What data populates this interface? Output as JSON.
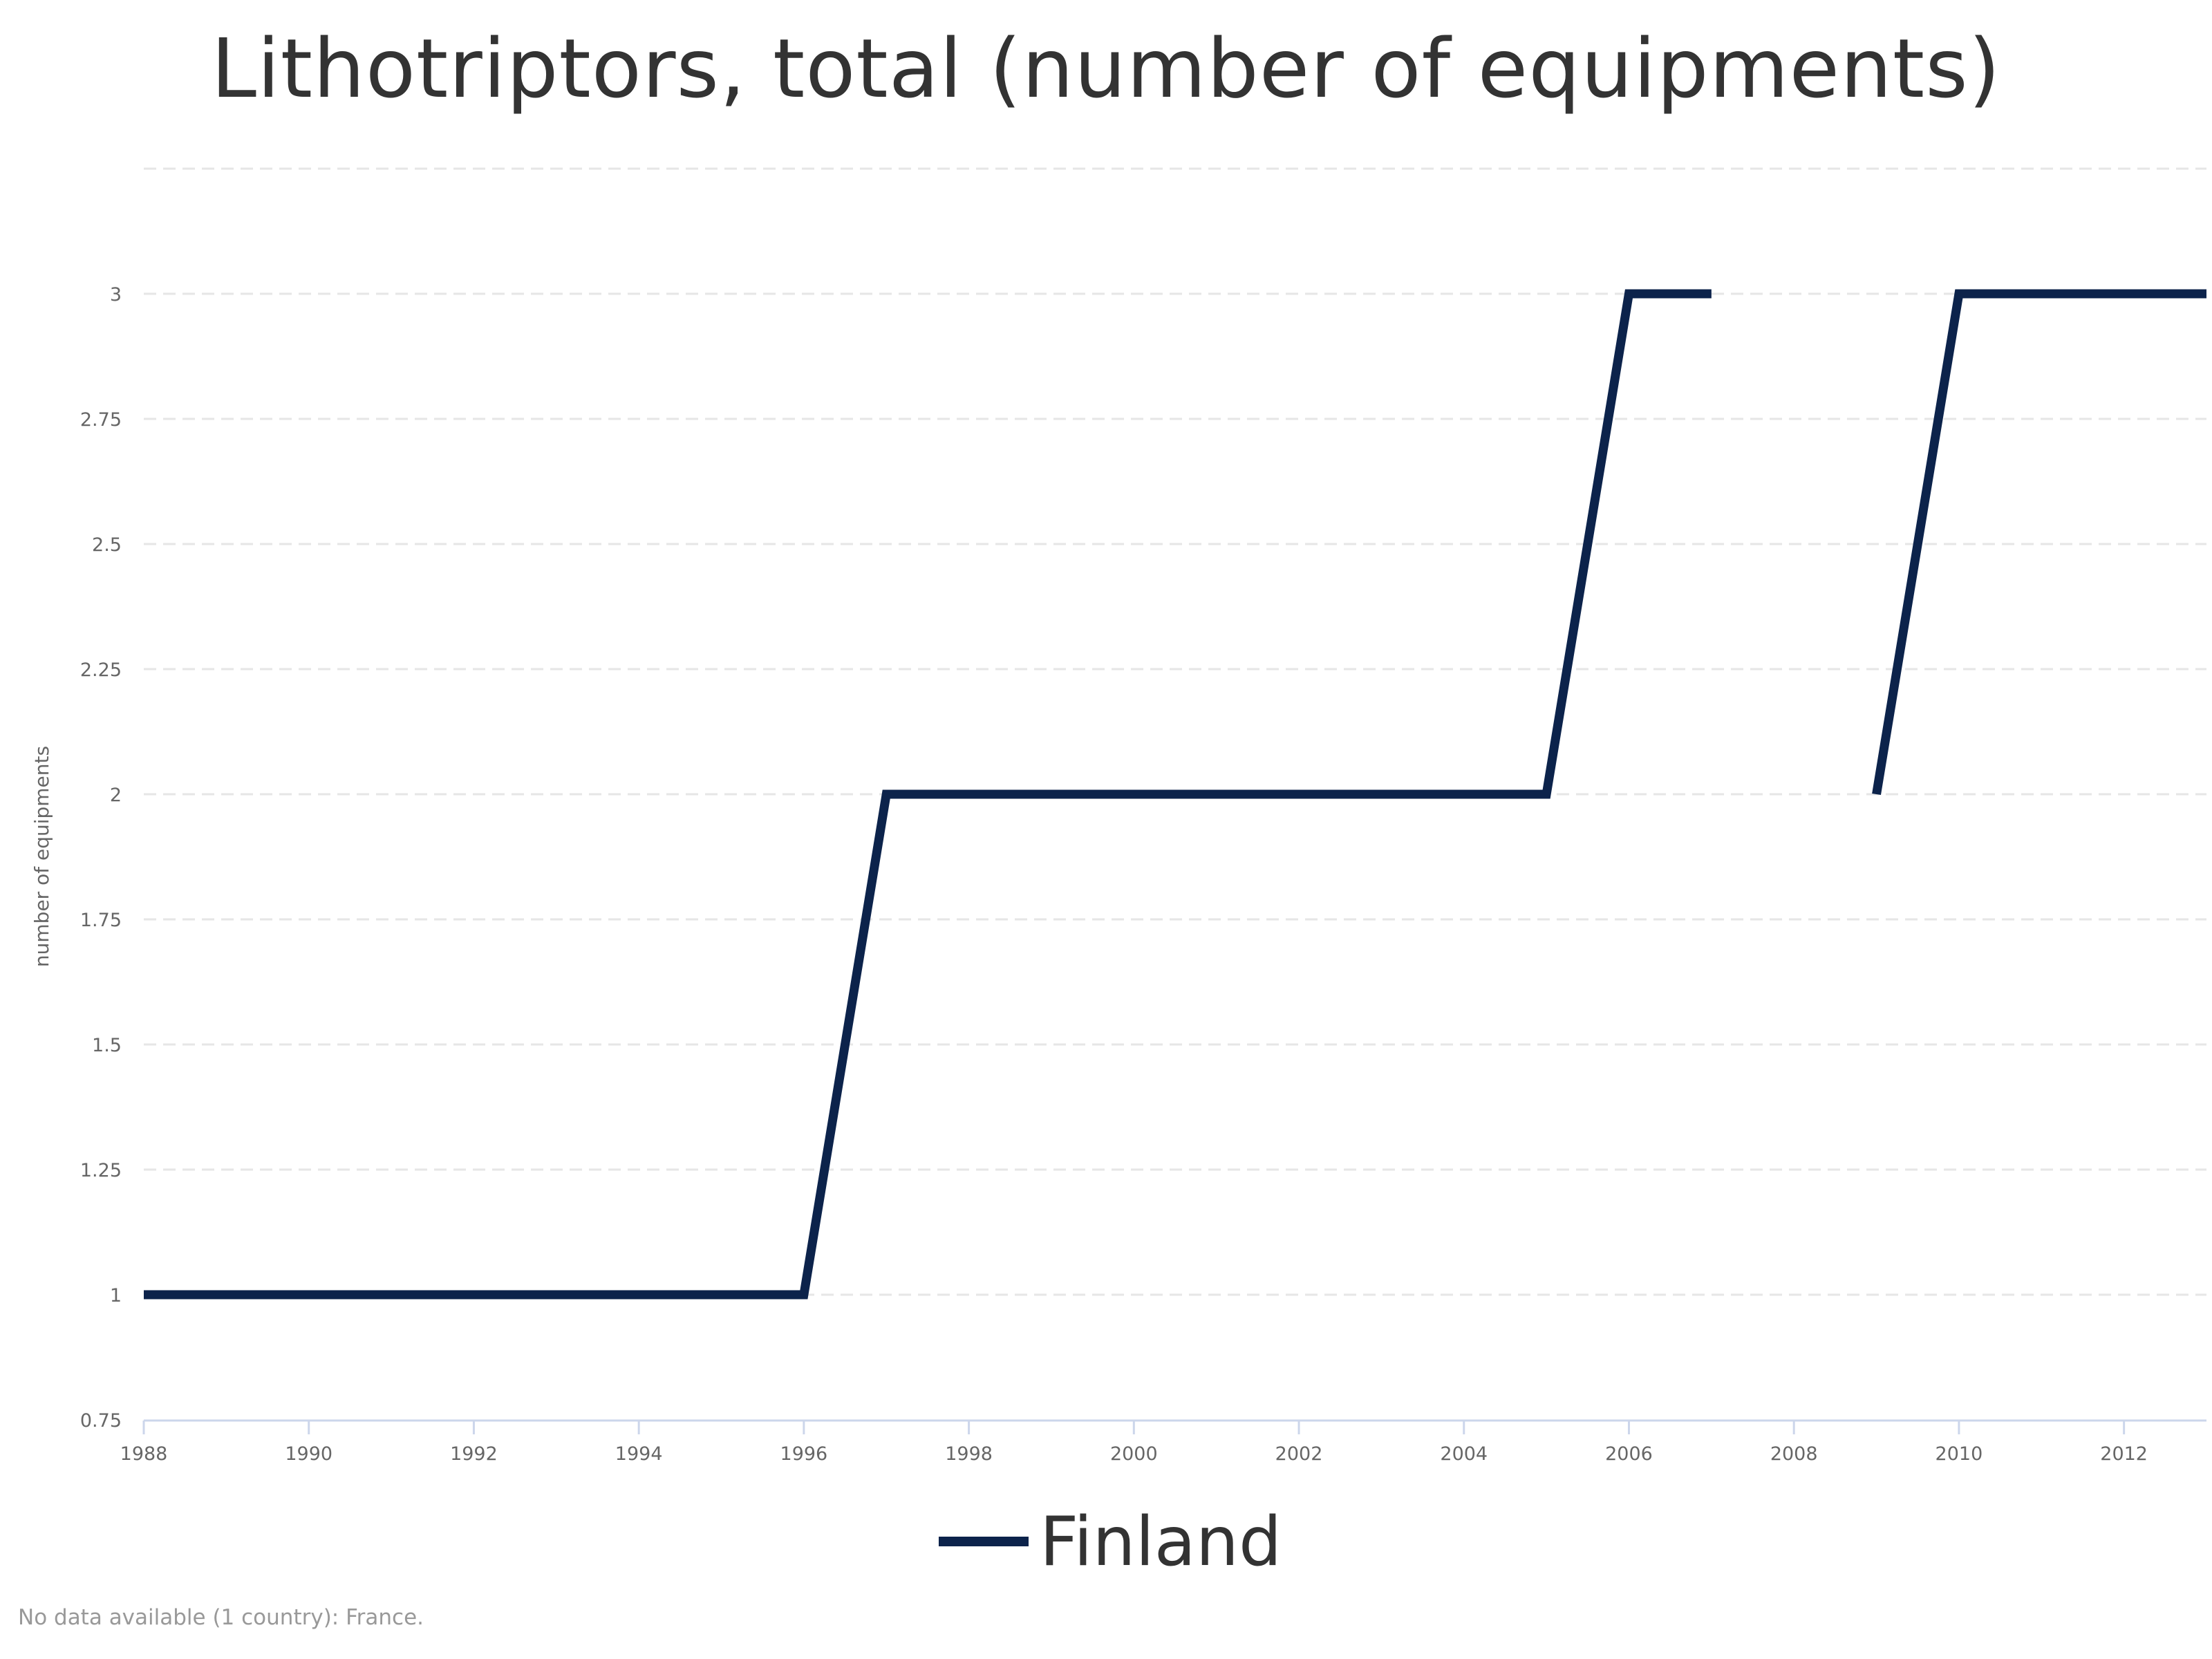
{
  "title": "Lithotriptors, total (number of equipments)",
  "footnote": "No data available (1 country): France.",
  "colors": {
    "series": "#0c234b",
    "grid": "#e6e6e6",
    "axis": "#ccd6eb"
  },
  "chart_data": {
    "type": "line",
    "title": "Lithotriptors, total (number of equipments)",
    "xlabel": "",
    "ylabel": "number of equipments",
    "xlim": [
      1988,
      2013
    ],
    "ylim": [
      0.75,
      3.25
    ],
    "x_ticks": [
      1988,
      1990,
      1992,
      1994,
      1996,
      1998,
      2000,
      2002,
      2004,
      2006,
      2008,
      2010,
      2012
    ],
    "y_ticks": [
      0.75,
      1,
      1.25,
      1.5,
      1.75,
      2,
      2.25,
      2.5,
      2.75,
      3
    ],
    "grid": true,
    "legend": "bottom-center",
    "x": [
      1988,
      1989,
      1990,
      1991,
      1992,
      1993,
      1994,
      1995,
      1996,
      1997,
      1998,
      1999,
      2000,
      2001,
      2002,
      2003,
      2004,
      2005,
      2006,
      2007,
      2008,
      2009,
      2010,
      2011,
      2012,
      2013
    ],
    "series": [
      {
        "name": "Finland",
        "values": [
          1,
          1,
          1,
          1,
          1,
          1,
          1,
          1,
          1,
          2,
          2,
          2,
          2,
          2,
          2,
          2,
          2,
          2,
          3,
          3,
          null,
          2,
          3,
          3,
          3,
          3
        ]
      }
    ]
  }
}
